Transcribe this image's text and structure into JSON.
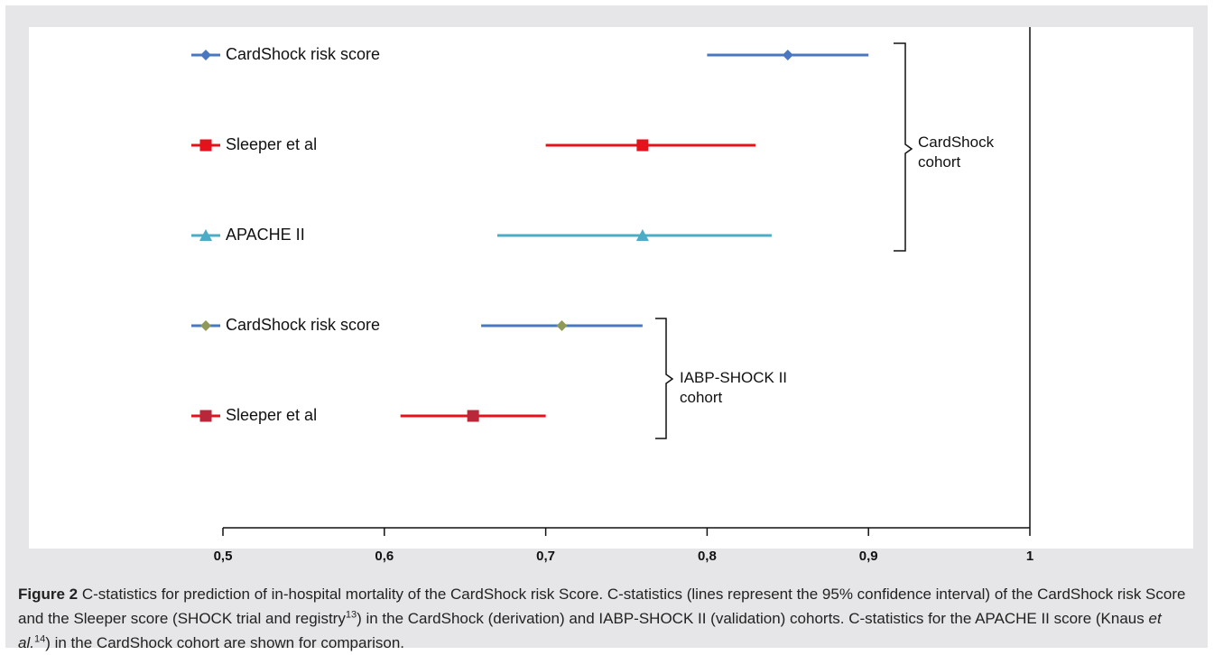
{
  "chart_data": {
    "type": "forest",
    "rows": [
      {
        "name": "CardShock risk score",
        "color": "#4a78c0",
        "marker": "diamond",
        "marker_color": "#4a78c0",
        "value": 0.85,
        "lower": 0.8,
        "upper": 0.9
      },
      {
        "name": "Sleeper et al",
        "color": "#e3121b",
        "marker": "square",
        "marker_color": "#e3121b",
        "value": 0.76,
        "lower": 0.7,
        "upper": 0.83
      },
      {
        "name": "APACHE II",
        "color": "#4bacc6",
        "marker": "triangle",
        "marker_color": "#4bacc6",
        "value": 0.76,
        "lower": 0.67,
        "upper": 0.84
      },
      {
        "name": "CardShock risk score",
        "color": "#4a78c0",
        "marker": "diamond",
        "marker_color": "#8f9a5a",
        "value": 0.71,
        "lower": 0.66,
        "upper": 0.76
      },
      {
        "name": "Sleeper et al",
        "color": "#e3121b",
        "marker": "square",
        "marker_color": "#b8283a",
        "value": 0.655,
        "lower": 0.61,
        "upper": 0.7
      }
    ],
    "groups": [
      "CardShock cohort",
      "IABP-SHOCK II cohort"
    ],
    "xlim": [
      0.5,
      1
    ],
    "xticks": [
      {
        "value": 0.5,
        "label": "0,5"
      },
      {
        "value": 0.6,
        "label": "0,6"
      },
      {
        "value": 0.7,
        "label": "0,7"
      },
      {
        "value": 0.8,
        "label": "0,8"
      },
      {
        "value": 0.9,
        "label": "0,9"
      },
      1
    ]
  },
  "caption": {
    "label": "Figure 2",
    "text_1": "C-statistics for prediction of in-hospital mortality of the CardShock risk Score. C-statistics (lines represent the 95% confidence interval) of the CardShock risk Score and the Sleeper score (SHOCK trial and registry",
    "ref_1": "13",
    "text_2": ") in the CardShock (derivation) and IABP-SHOCK II (validation) cohorts. C-statistics for the APACHE II score (Knaus ",
    "italic": "et al.",
    "ref_2": "14",
    "text_3": ") in the CardShock cohort are shown for comparison."
  }
}
